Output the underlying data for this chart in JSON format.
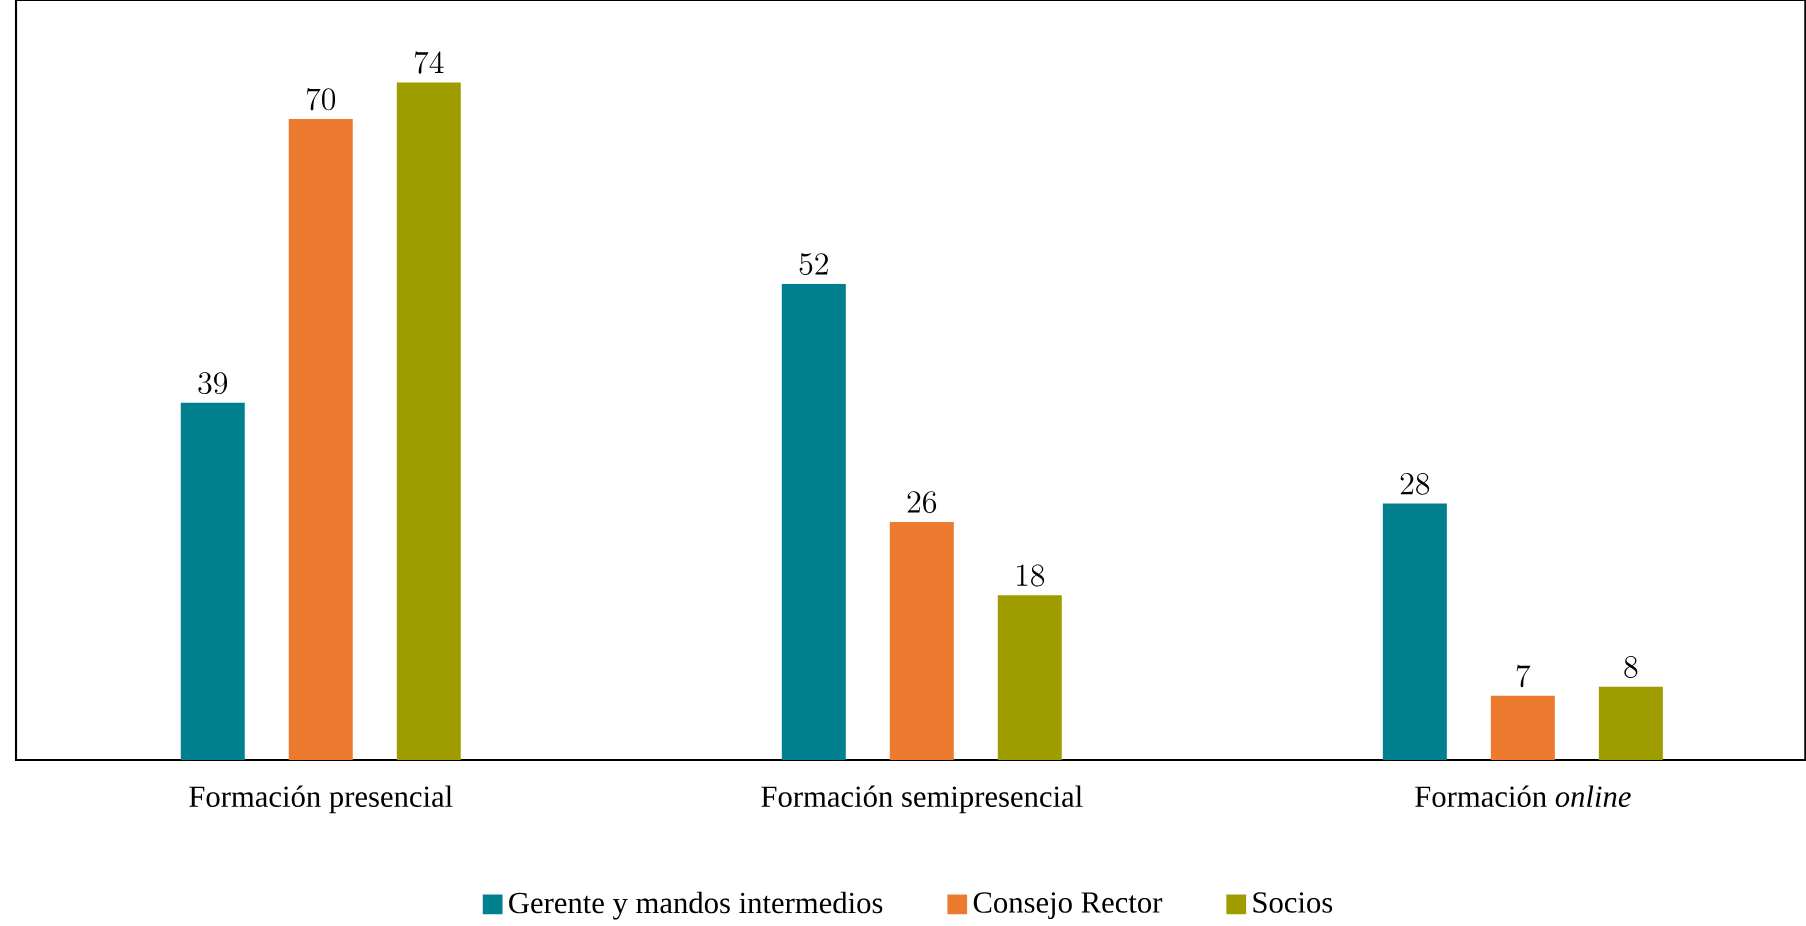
{
  "chart_data": {
    "type": "bar",
    "categories": [
      "Formación presencial",
      "Formación semipresencial",
      "Formación *online*"
    ],
    "series": [
      {
        "name": "Gerente y mandos intermedios",
        "color": "#00808f",
        "values": [
          39,
          52,
          28
        ]
      },
      {
        "name": "Consejo Rector",
        "color": "#ec7a2f",
        "values": [
          70,
          26,
          7
        ]
      },
      {
        "name": "Socios",
        "color": "#9f9c00",
        "values": [
          74,
          18,
          8
        ]
      }
    ],
    "ylim": [
      0,
      83
    ],
    "data_labels": true,
    "legend": "bottom"
  }
}
